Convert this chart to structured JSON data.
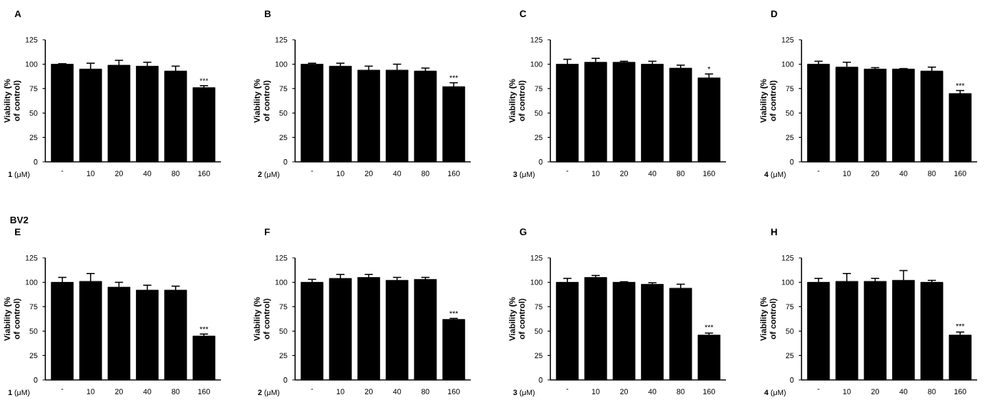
{
  "chart_data": [
    {
      "type": "bar",
      "title": "A",
      "xlabel": "**1** (μM)",
      "ylabel": "Viability (% of control)",
      "categories": [
        "-",
        "10",
        "20",
        "40",
        "80",
        "160"
      ],
      "values": [
        100,
        95,
        99,
        98,
        93,
        76
      ],
      "errors": [
        0.5,
        6,
        5,
        4,
        5,
        2
      ],
      "color": "#000000",
      "ylim": [
        0,
        125
      ],
      "yticks": [
        0,
        25,
        50,
        75,
        100,
        125
      ],
      "annotations": [
        {
          "text": "***",
          "x": "160",
          "y": 80
        }
      ]
    },
    {
      "type": "bar",
      "title": "B",
      "xlabel": "**2** (μM)",
      "ylabel": "Viability (% of control)",
      "categories": [
        "-",
        "10",
        "20",
        "40",
        "80",
        "160"
      ],
      "values": [
        100,
        98,
        94,
        94,
        93,
        77
      ],
      "errors": [
        1,
        3,
        4,
        6,
        3,
        4
      ],
      "color": "#000000",
      "ylim": [
        0,
        125
      ],
      "yticks": [
        0,
        25,
        50,
        75,
        100,
        125
      ],
      "annotations": [
        {
          "text": "***",
          "x": "160",
          "y": 83
        }
      ]
    },
    {
      "type": "bar",
      "title": "C",
      "xlabel": "**3** (μM)",
      "ylabel": "Viability (% of control)",
      "categories": [
        "-",
        "10",
        "20",
        "40",
        "80",
        "160"
      ],
      "values": [
        100,
        102,
        102,
        100,
        96,
        86
      ],
      "errors": [
        5,
        4,
        1,
        3,
        3,
        4
      ],
      "color": "#000000",
      "ylim": [
        0,
        125
      ],
      "yticks": [
        0,
        25,
        50,
        75,
        100,
        125
      ],
      "annotations": [
        {
          "text": "*",
          "x": "160",
          "y": 92
        }
      ]
    },
    {
      "type": "bar",
      "title": "D",
      "xlabel": "**4** (μM)",
      "ylabel": "Viability (% of control)",
      "categories": [
        "-",
        "10",
        "20",
        "40",
        "80",
        "160"
      ],
      "values": [
        100,
        97,
        95,
        95,
        93,
        70
      ],
      "errors": [
        3,
        5,
        1.5,
        0.5,
        4,
        3
      ],
      "color": "#000000",
      "ylim": [
        0,
        125
      ],
      "yticks": [
        0,
        25,
        50,
        75,
        100,
        125
      ],
      "annotations": [
        {
          "text": "***",
          "x": "160",
          "y": 75
        }
      ]
    },
    {
      "type": "bar",
      "title": "E",
      "xlabel": "**1** (μM)",
      "ylabel": "Viability (% of control)",
      "categories": [
        "-",
        "10",
        "20",
        "40",
        "80",
        "160"
      ],
      "values": [
        100,
        101,
        95,
        92,
        92,
        45
      ],
      "errors": [
        5,
        8,
        5,
        5,
        4,
        2
      ],
      "color": "#000000",
      "ylim": [
        0,
        125
      ],
      "yticks": [
        0,
        25,
        50,
        75,
        100,
        125
      ],
      "annotations": [
        "BV2",
        {
          "text": "***",
          "x": "160",
          "y": 49
        }
      ]
    },
    {
      "type": "bar",
      "title": "F",
      "xlabel": "**2** (μM)",
      "ylabel": "Viability (% of control)",
      "categories": [
        "-",
        "10",
        "20",
        "40",
        "80",
        "160"
      ],
      "values": [
        100,
        104,
        105,
        102,
        103,
        62
      ],
      "errors": [
        3,
        4,
        3,
        3,
        2,
        1
      ],
      "color": "#000000",
      "ylim": [
        0,
        125
      ],
      "yticks": [
        0,
        25,
        50,
        75,
        100,
        125
      ],
      "annotations": [
        {
          "text": "***",
          "x": "160",
          "y": 65
        }
      ]
    },
    {
      "type": "bar",
      "title": "G",
      "xlabel": "**3** (μM)",
      "ylabel": "Viability (% of control)",
      "categories": [
        "-",
        "10",
        "20",
        "40",
        "80",
        "160"
      ],
      "values": [
        100,
        105,
        100,
        98,
        94,
        46
      ],
      "errors": [
        4,
        2,
        0.5,
        1.5,
        4,
        2
      ],
      "color": "#000000",
      "ylim": [
        0,
        125
      ],
      "yticks": [
        0,
        25,
        50,
        75,
        100,
        125
      ],
      "annotations": [
        {
          "text": "***",
          "x": "160",
          "y": 51
        }
      ]
    },
    {
      "type": "bar",
      "title": "H",
      "xlabel": "**4** (μM)",
      "ylabel": "Viability (% of control)",
      "categories": [
        "-",
        "10",
        "20",
        "40",
        "80",
        "160"
      ],
      "values": [
        100,
        101,
        101,
        102,
        100,
        46
      ],
      "errors": [
        4,
        8,
        3,
        10,
        2,
        3
      ],
      "color": "#000000",
      "ylim": [
        0,
        125
      ],
      "yticks": [
        0,
        25,
        50,
        75,
        100,
        125
      ],
      "annotations": [
        {
          "text": "***",
          "x": "160",
          "y": 52
        }
      ]
    }
  ]
}
